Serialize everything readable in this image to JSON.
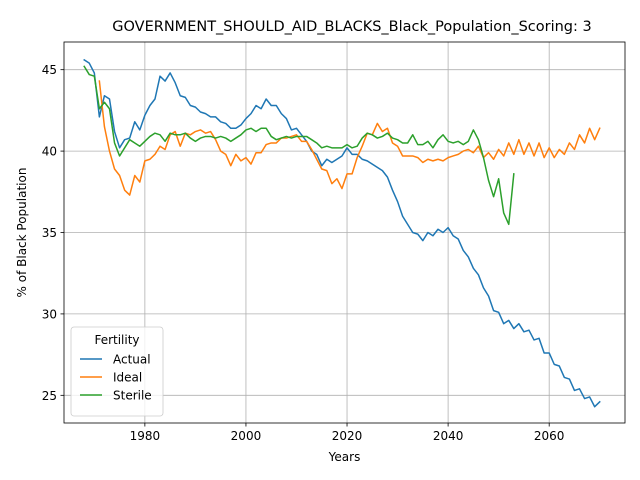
{
  "chart_data": {
    "type": "line",
    "title": "GOVERNMENT_SHOULD_AID_BLACKS_Black_Population_Scoring: 3",
    "xlabel": "Years",
    "ylabel": "% of Black Population",
    "xlim": [
      1964,
      2075
    ],
    "ylim": [
      23.3,
      46.7
    ],
    "xticks": [
      1980,
      2000,
      2020,
      2040,
      2060
    ],
    "yticks": [
      25,
      30,
      35,
      40,
      45
    ],
    "grid": true,
    "legend": {
      "title": "Fertility",
      "placement": "lower-left"
    },
    "series": [
      {
        "name": "Actual",
        "color": "#1f77b4",
        "x": [
          1968,
          1969,
          1970,
          1971,
          1972,
          1973,
          1974,
          1975,
          1976,
          1977,
          1978,
          1979,
          1980,
          1981,
          1982,
          1983,
          1984,
          1985,
          1986,
          1987,
          1988,
          1989,
          1990,
          1991,
          1992,
          1993,
          1994,
          1995,
          1996,
          1997,
          1998,
          1999,
          2000,
          2001,
          2002,
          2003,
          2004,
          2005,
          2006,
          2007,
          2008,
          2009,
          2010,
          2011,
          2012,
          2013,
          2014,
          2015,
          2016,
          2017,
          2018,
          2019,
          2020,
          2021,
          2022,
          2023,
          2024,
          2025,
          2026,
          2027,
          2028,
          2029,
          2030,
          2031,
          2032,
          2033,
          2034,
          2035,
          2036,
          2037,
          2038,
          2039,
          2040,
          2041,
          2042,
          2043,
          2044,
          2045,
          2046,
          2047,
          2048,
          2049,
          2050,
          2051,
          2052,
          2053,
          2054,
          2055,
          2056,
          2057,
          2058,
          2059,
          2060,
          2061,
          2062,
          2063,
          2064,
          2065,
          2066,
          2067,
          2068,
          2069,
          2070
        ],
        "y": [
          45.6,
          45.4,
          44.8,
          42.1,
          43.4,
          43.2,
          41.2,
          40.2,
          40.7,
          40.8,
          41.8,
          41.3,
          42.2,
          42.8,
          43.2,
          44.6,
          44.3,
          44.8,
          44.2,
          43.4,
          43.3,
          42.8,
          42.7,
          42.4,
          42.3,
          42.1,
          42.1,
          41.8,
          41.7,
          41.4,
          41.4,
          41.6,
          42.0,
          42.3,
          42.8,
          42.6,
          43.2,
          42.8,
          42.8,
          42.3,
          42.0,
          41.3,
          41.4,
          41.0,
          40.6,
          40.0,
          39.8,
          39.1,
          39.5,
          39.3,
          39.5,
          39.7,
          40.2,
          39.8,
          39.8,
          39.5,
          39.4,
          39.2,
          39.0,
          38.8,
          38.4,
          37.6,
          36.9,
          36.0,
          35.5,
          35.0,
          34.9,
          34.5,
          35.0,
          34.8,
          35.2,
          35.0,
          35.3,
          34.8,
          34.6,
          33.9,
          33.5,
          32.8,
          32.4,
          31.6,
          31.1,
          30.2,
          30.1,
          29.4,
          29.6,
          29.1,
          29.4,
          28.9,
          29.0,
          28.4,
          28.5,
          27.6,
          27.6,
          26.9,
          26.8,
          26.1,
          26.0,
          25.3,
          25.4,
          24.8,
          24.9,
          24.3,
          24.6
        ]
      },
      {
        "name": "Ideal",
        "color": "#ff7f0e",
        "x": [
          1971,
          1972,
          1973,
          1974,
          1975,
          1976,
          1977,
          1978,
          1979,
          1980,
          1981,
          1982,
          1983,
          1984,
          1985,
          1986,
          1987,
          1988,
          1989,
          1990,
          1991,
          1992,
          1993,
          1994,
          1995,
          1996,
          1997,
          1998,
          1999,
          2000,
          2001,
          2002,
          2003,
          2004,
          2005,
          2006,
          2007,
          2008,
          2009,
          2010,
          2011,
          2012,
          2013,
          2014,
          2015,
          2016,
          2017,
          2018,
          2019,
          2020,
          2021,
          2022,
          2023,
          2024,
          2025,
          2026,
          2027,
          2028,
          2029,
          2030,
          2031,
          2032,
          2033,
          2034,
          2035,
          2036,
          2037,
          2038,
          2039,
          2040,
          2041,
          2042,
          2043,
          2044,
          2045,
          2046,
          2047,
          2048,
          2049,
          2050,
          2051,
          2052,
          2053,
          2054,
          2055,
          2056,
          2057,
          2058,
          2059,
          2060,
          2061,
          2062,
          2063,
          2064,
          2065,
          2066,
          2067,
          2068,
          2069,
          2070
        ],
        "y": [
          44.3,
          41.5,
          40.0,
          38.9,
          38.5,
          37.6,
          37.3,
          38.5,
          38.1,
          39.4,
          39.5,
          39.8,
          40.3,
          40.1,
          41.0,
          41.2,
          40.3,
          41.1,
          41.0,
          41.2,
          41.3,
          41.1,
          41.2,
          40.7,
          40.0,
          39.8,
          39.1,
          39.8,
          39.4,
          39.6,
          39.2,
          39.9,
          39.9,
          40.4,
          40.5,
          40.5,
          40.8,
          40.8,
          40.9,
          41.0,
          40.6,
          40.6,
          40.1,
          39.5,
          38.9,
          38.8,
          38.0,
          38.3,
          37.7,
          38.6,
          38.6,
          39.6,
          40.3,
          41.1,
          41.0,
          41.7,
          41.2,
          41.4,
          40.5,
          40.3,
          39.7,
          39.7,
          39.7,
          39.6,
          39.3,
          39.5,
          39.4,
          39.5,
          39.4,
          39.6,
          39.7,
          39.8,
          40.0,
          40.1,
          39.9,
          40.3,
          39.6,
          39.9,
          39.5,
          40.1,
          39.7,
          40.5,
          39.8,
          40.7,
          39.8,
          40.5,
          39.7,
          40.5,
          39.6,
          40.2,
          39.6,
          40.1,
          39.8,
          40.5,
          40.1,
          41.0,
          40.5,
          41.4,
          40.7,
          41.4
        ]
      },
      {
        "name": "Sterile",
        "color": "#2ca02c",
        "x": [
          1968,
          1969,
          1970,
          1971,
          1972,
          1973,
          1974,
          1975,
          1976,
          1977,
          1978,
          1979,
          1980,
          1981,
          1982,
          1983,
          1984,
          1985,
          1986,
          1987,
          1988,
          1989,
          1990,
          1991,
          1992,
          1993,
          1994,
          1995,
          1996,
          1997,
          1998,
          1999,
          2000,
          2001,
          2002,
          2003,
          2004,
          2005,
          2006,
          2007,
          2008,
          2009,
          2010,
          2011,
          2012,
          2013,
          2014,
          2015,
          2016,
          2017,
          2018,
          2019,
          2020,
          2021,
          2022,
          2023,
          2024,
          2025,
          2026,
          2027,
          2028,
          2029,
          2030,
          2031,
          2032,
          2033,
          2034,
          2035,
          2036,
          2037,
          2038,
          2039,
          2040,
          2041,
          2042,
          2043,
          2044,
          2045,
          2046,
          2047,
          2048,
          2049,
          2050,
          2051,
          2052,
          2053
        ],
        "y": [
          45.2,
          44.7,
          44.6,
          42.6,
          43.0,
          42.6,
          40.5,
          39.7,
          40.2,
          40.7,
          40.5,
          40.3,
          40.6,
          40.9,
          41.1,
          41.0,
          40.6,
          41.1,
          41.0,
          41.0,
          41.1,
          40.8,
          40.6,
          40.8,
          40.9,
          40.9,
          40.8,
          40.9,
          40.8,
          40.6,
          40.8,
          41.0,
          41.3,
          41.4,
          41.2,
          41.4,
          41.4,
          40.9,
          40.7,
          40.8,
          40.9,
          40.8,
          40.9,
          40.9,
          40.9,
          40.7,
          40.5,
          40.2,
          40.3,
          40.2,
          40.2,
          40.2,
          40.4,
          40.2,
          40.3,
          40.8,
          41.1,
          41.0,
          40.8,
          40.9,
          41.1,
          40.8,
          40.7,
          40.5,
          40.5,
          41.0,
          40.4,
          40.4,
          40.6,
          40.2,
          40.7,
          41.0,
          40.6,
          40.5,
          40.6,
          40.4,
          40.6,
          41.3,
          40.7,
          39.6,
          38.2,
          37.2,
          38.3,
          36.2,
          35.5,
          38.6
        ]
      }
    ]
  }
}
